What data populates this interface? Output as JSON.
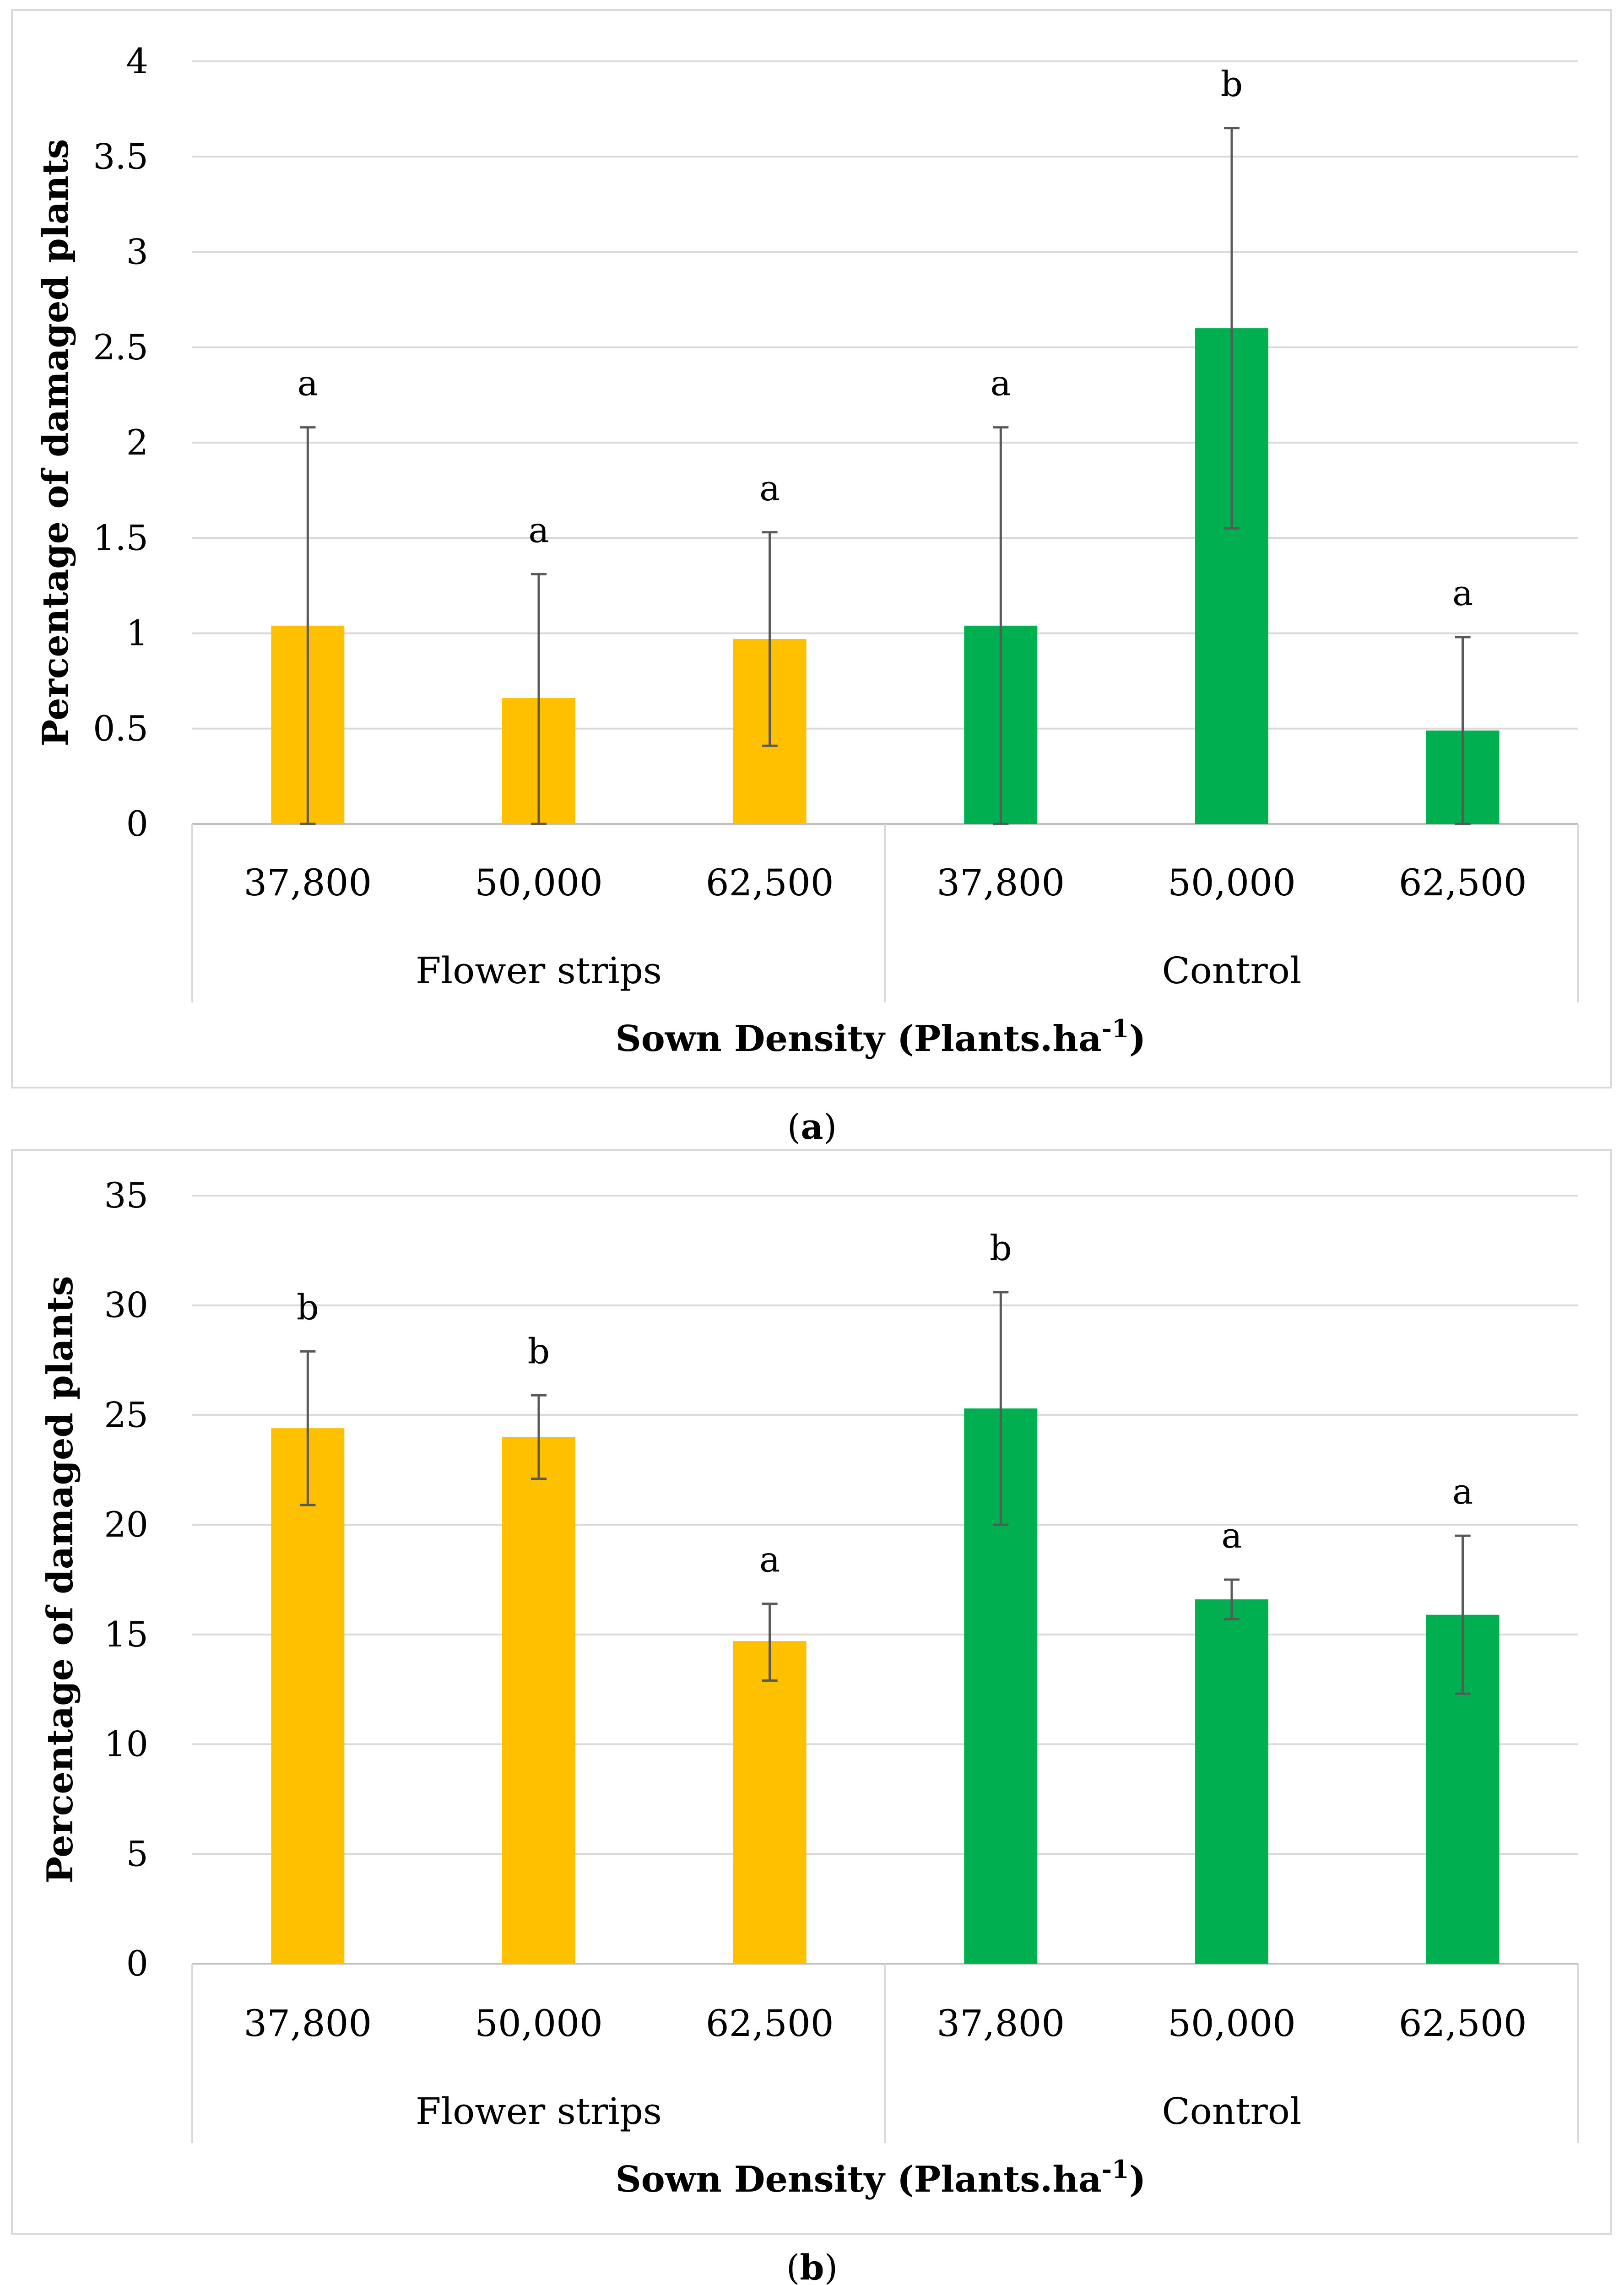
{
  "chart_data": [
    {
      "type": "bar",
      "panel": "a",
      "title": "",
      "xlabel": "Sown Density (Plants.ha",
      "xlabel_sup": "-1",
      "xlabel_close": ")",
      "ylabel": "Percentage of damaged plants",
      "ylim": [
        0,
        4
      ],
      "yticks": [
        0,
        0.5,
        1,
        1.5,
        2,
        2.5,
        3,
        3.5,
        4
      ],
      "ytick_labels": [
        "0",
        "0.5",
        "1",
        "1.5",
        "2",
        "2.5",
        "3",
        "3.5",
        "4"
      ],
      "groups": [
        {
          "name": "Flower strips",
          "color": "#FFC000",
          "categories": [
            "37,800",
            "50,000",
            "62,500"
          ],
          "values": [
            1.04,
            0.66,
            0.97
          ],
          "err_low": [
            0,
            0,
            0.41
          ],
          "err_high": [
            2.08,
            1.31,
            1.53
          ],
          "significance": [
            "a",
            "a",
            "a"
          ]
        },
        {
          "name": "Control",
          "color": "#00B050",
          "categories": [
            "37,800",
            "50,000",
            "62,500"
          ],
          "values": [
            1.04,
            2.6,
            0.49
          ],
          "err_low": [
            0,
            1.55,
            0
          ],
          "err_high": [
            2.08,
            3.65,
            0.98
          ],
          "significance": [
            "a",
            "b",
            "a"
          ]
        }
      ],
      "caption": {
        "open": "(",
        "letter": "a",
        "close": ")"
      }
    },
    {
      "type": "bar",
      "panel": "b",
      "title": "",
      "xlabel": "Sown Density (Plants.ha",
      "xlabel_sup": "-1",
      "xlabel_close": ")",
      "ylabel": "Percentage of damaged plants",
      "ylim": [
        0,
        35
      ],
      "yticks": [
        0,
        5,
        10,
        15,
        20,
        25,
        30,
        35
      ],
      "ytick_labels": [
        "0",
        "5",
        "10",
        "15",
        "20",
        "25",
        "30",
        "35"
      ],
      "groups": [
        {
          "name": "Flower strips",
          "color": "#FFC000",
          "categories": [
            "37,800",
            "50,000",
            "62,500"
          ],
          "values": [
            24.4,
            24.0,
            14.7
          ],
          "err_low": [
            20.9,
            22.1,
            12.9
          ],
          "err_high": [
            27.9,
            25.9,
            16.4
          ],
          "significance": [
            "b",
            "b",
            "a"
          ]
        },
        {
          "name": "Control",
          "color": "#00B050",
          "categories": [
            "37,800",
            "50,000",
            "62,500"
          ],
          "values": [
            25.3,
            16.6,
            15.9
          ],
          "err_low": [
            20.0,
            15.7,
            12.3
          ],
          "err_high": [
            30.6,
            17.5,
            19.5
          ],
          "significance": [
            "b",
            "a",
            "a"
          ]
        }
      ],
      "caption": {
        "open": "(",
        "letter": "b",
        "close": ")"
      }
    }
  ]
}
